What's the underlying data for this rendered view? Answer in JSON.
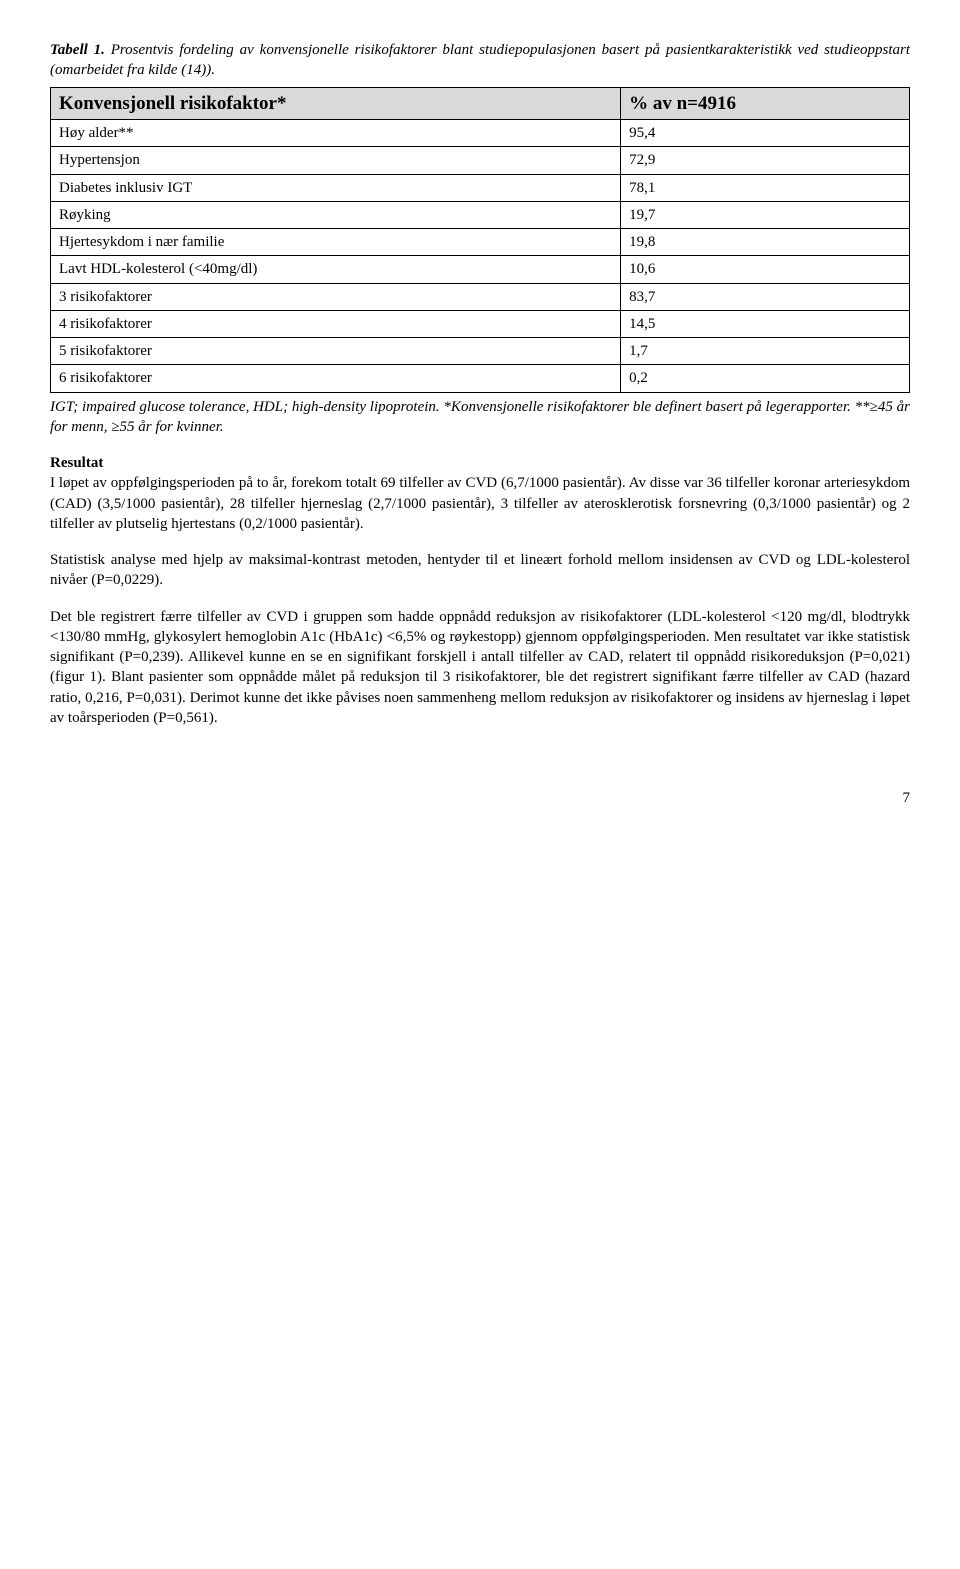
{
  "caption": {
    "label": "Tabell 1.",
    "text": " Prosentvis fordeling av konvensjonelle risikofaktorer blant studiepopulasjonen basert på pasientkarakteristikk ved studieoppstart (omarbeidet fra kilde (14))."
  },
  "table": {
    "header": {
      "c1": "Konvensjonell risikofaktor*",
      "c2": "% av n=4916"
    },
    "rows": [
      {
        "c1": "Høy alder**",
        "c2": "95,4"
      },
      {
        "c1": "Hypertensjon",
        "c2": "72,9"
      },
      {
        "c1": "Diabetes inklusiv IGT",
        "c2": "78,1"
      },
      {
        "c1": "Røyking",
        "c2": "19,7"
      },
      {
        "c1": "Hjertesykdom i nær familie",
        "c2": "19,8"
      },
      {
        "c1": "Lavt HDL-kolesterol (<40mg/dl)",
        "c2": "10,6"
      },
      {
        "c1": "3 risikofaktorer",
        "c2": "83,7"
      },
      {
        "c1": "4 risikofaktorer",
        "c2": "14,5"
      },
      {
        "c1": "5 risikofaktorer",
        "c2": "1,7"
      },
      {
        "c1": "6 risikofaktorer",
        "c2": "0,2"
      }
    ]
  },
  "footnote": "IGT; impaired glucose tolerance, HDL; high-density lipoprotein. *Konvensjonelle risikofaktorer ble definert basert på legerapporter. **≥45 år for menn, ≥55 år for kvinner.",
  "resultat_heading": "Resultat",
  "paragraphs": {
    "p1": "I løpet av oppfølgingsperioden på to år, forekom totalt 69 tilfeller av CVD (6,7/1000 pasientår). Av disse var 36 tilfeller koronar arteriesykdom (CAD) (3,5/1000 pasientår), 28 tilfeller hjerneslag (2,7/1000 pasientår), 3 tilfeller av aterosklerotisk forsnevring (0,3/1000 pasientår) og 2 tilfeller av plutselig hjertestans (0,2/1000 pasientår).",
    "p2": "Statistisk analyse med hjelp av maksimal-kontrast metoden, hentyder til et lineært forhold mellom insidensen av CVD og LDL-kolesterol nivåer (P=0,0229).",
    "p3": "Det ble registrert færre tilfeller av CVD i gruppen som hadde oppnådd reduksjon av risikofaktorer (LDL-kolesterol <120 mg/dl, blodtrykk <130/80 mmHg, glykosylert hemoglobin A1c (HbA1c) <6,5% og røykestopp) gjennom oppfølgingsperioden. Men resultatet var ikke statistisk signifikant (P=0,239). Allikevel kunne en se en signifikant forskjell i antall tilfeller av CAD, relatert til oppnådd risikoreduksjon (P=0,021) (figur 1). Blant pasienter som oppnådde målet på reduksjon til 3 risikofaktorer, ble det registrert signifikant færre tilfeller av CAD (hazard ratio, 0,216, P=0,031). Derimot kunne det ikke påvises noen sammenheng mellom reduksjon av risikofaktorer og insidens av hjerneslag i løpet av toårsperioden (P=0,561)."
  },
  "page_number": "7"
}
